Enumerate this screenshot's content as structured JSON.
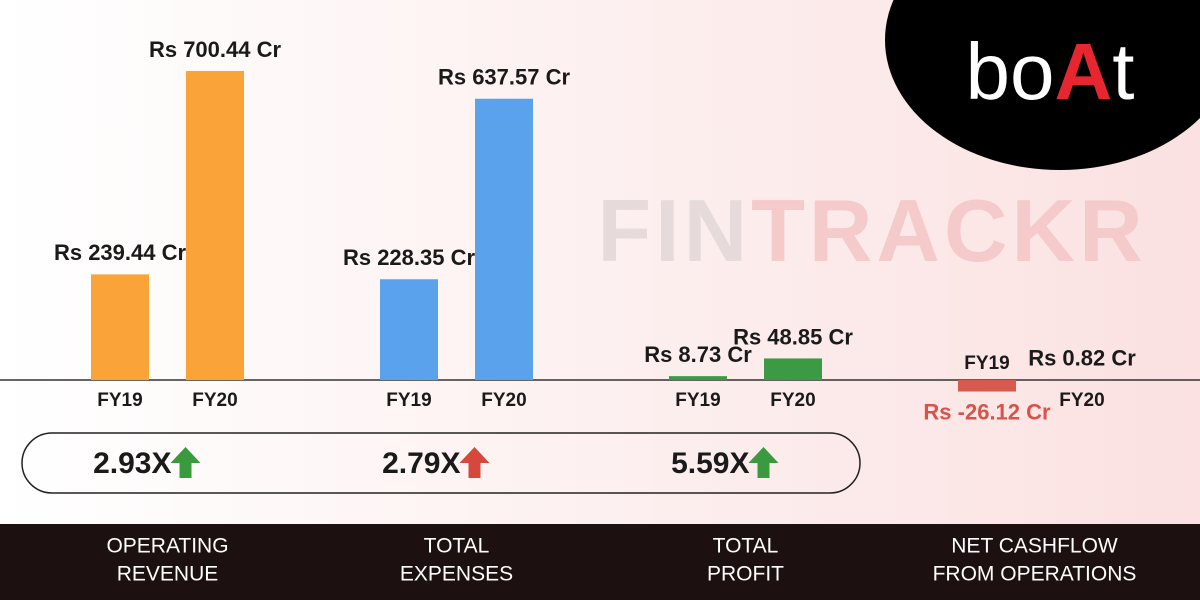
{
  "chart_data": [
    {
      "type": "bar",
      "title_lines": [
        "OPERATING",
        "REVENUE"
      ],
      "categories": [
        "FY19",
        "FY20"
      ],
      "values": [
        239.44,
        700.44
      ],
      "value_labels": [
        "Rs 239.44 Cr",
        "Rs 700.44 Cr"
      ],
      "color": "#f9a338",
      "growth": "2.93X",
      "growth_arrow_color": "#3a9a3e"
    },
    {
      "type": "bar",
      "title_lines": [
        "TOTAL",
        "EXPENSES"
      ],
      "categories": [
        "FY19",
        "FY20"
      ],
      "values": [
        228.35,
        637.57
      ],
      "value_labels": [
        "Rs 228.35 Cr",
        "Rs 637.57 Cr"
      ],
      "color": "#5aa3ec",
      "growth": "2.79X",
      "growth_arrow_color": "#d6483c"
    },
    {
      "type": "bar",
      "title_lines": [
        "TOTAL",
        "PROFIT"
      ],
      "categories": [
        "FY19",
        "FY20"
      ],
      "values": [
        8.73,
        48.85
      ],
      "value_labels": [
        "Rs 8.73 Cr",
        "Rs 48.85 Cr"
      ],
      "color": "#3c9a44",
      "growth": "5.59X",
      "growth_arrow_color": "#3a9a3e"
    },
    {
      "type": "bar",
      "title_lines": [
        "NET CASHFLOW",
        "FROM OPERATIONS"
      ],
      "categories": [
        "FY19",
        "FY20"
      ],
      "values": [
        -26.12,
        0.82
      ],
      "value_labels": [
        "Rs -26.12 Cr",
        "Rs 0.82 Cr"
      ],
      "colors": [
        "#d65a50",
        "#3a3a3a"
      ]
    }
  ],
  "logo": [
    "bo",
    "A",
    "t"
  ],
  "watermark": [
    "FIN",
    "TRACKR"
  ]
}
